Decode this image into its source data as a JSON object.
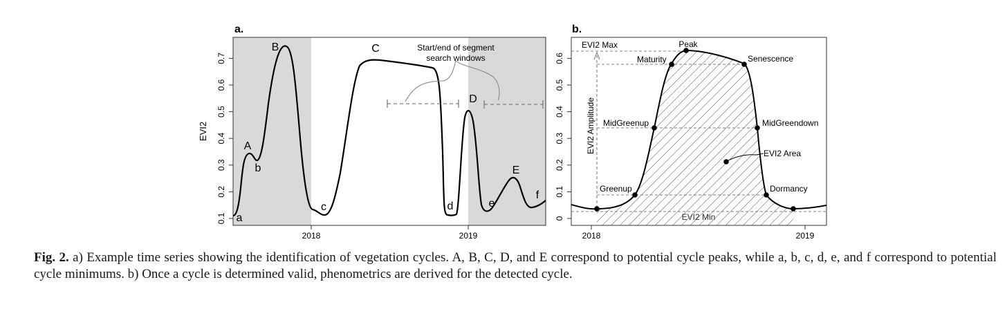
{
  "figure": {
    "panel_a": {
      "label": "a.",
      "ylabel": "EVI2",
      "yticks": [
        "0.1",
        "0.2",
        "0.3",
        "0.4",
        "0.5",
        "0.6",
        "0.7"
      ],
      "xticks": [
        "2018",
        "2019"
      ],
      "annotation": {
        "line1": "Start/end of segment",
        "line2": "search windows"
      },
      "peaks": [
        "A",
        "B",
        "C",
        "D",
        "E"
      ],
      "minimums": [
        "a",
        "b",
        "c",
        "d",
        "e",
        "f"
      ]
    },
    "panel_b": {
      "label": "b.",
      "yticks": [
        "0",
        "0.1",
        "0.2",
        "0.3",
        "0.4",
        "0.5",
        "0.6"
      ],
      "xticks": [
        "2018",
        "2019"
      ],
      "labels": {
        "evi2_max": "EVI2 Max",
        "evi2_min": "EVI2 Min",
        "amplitude": "EVI2 Amplitude",
        "area": "EVI2 Area",
        "peak": "Peak",
        "maturity": "Maturity",
        "senescence": "Senescence",
        "midgreenup": "MidGreenup",
        "midgreendown": "MidGreendown",
        "greenup": "Greenup",
        "dormancy": "Dormancy"
      }
    }
  },
  "caption": {
    "label": "Fig. 2.",
    "text": " a) Example time series showing the identification of vegetation cycles. A, B, C, D, and E correspond to potential cycle peaks, while a, b, c, d, e, and f correspond to potential cycle minimums. b) Once a cycle is determined valid, phenometrics are derived for the detected cycle."
  }
}
